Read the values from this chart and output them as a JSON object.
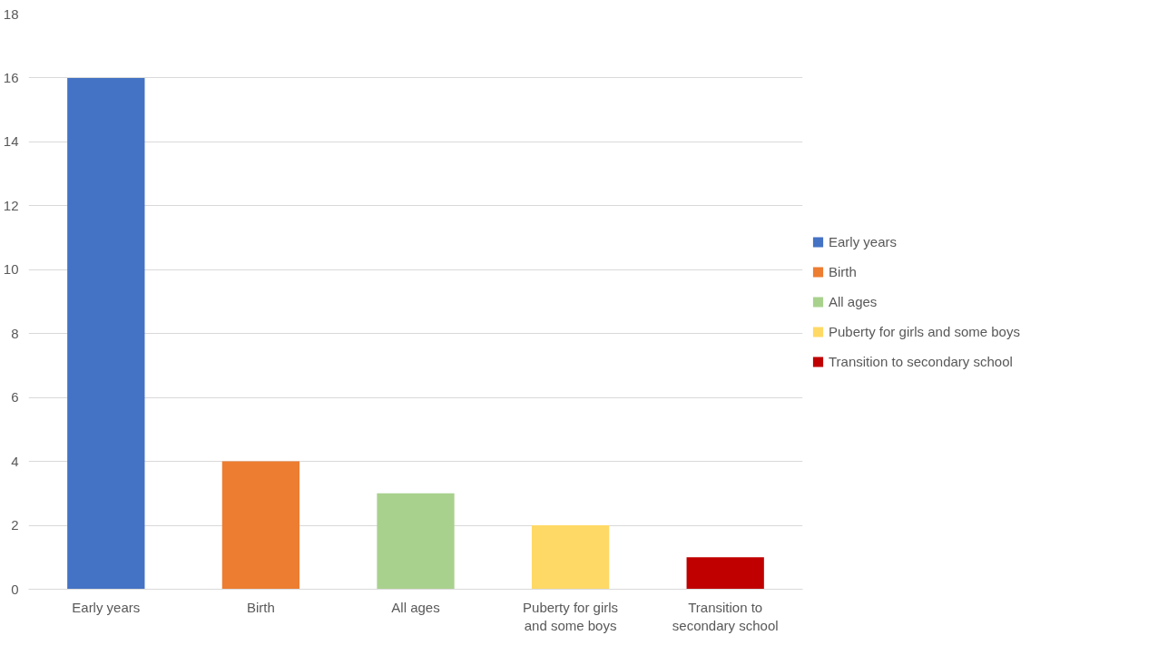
{
  "chart_data": {
    "type": "bar",
    "categories": [
      "Early years",
      "Birth",
      "All ages",
      "Puberty for girls and some boys",
      "Transition to secondary school"
    ],
    "stacked": true,
    "series": [
      {
        "name": "Early years",
        "color": "#4472c4",
        "values": [
          16,
          null,
          null,
          null,
          null
        ]
      },
      {
        "name": "Birth",
        "color": "#ed7d31",
        "values": [
          null,
          4,
          null,
          null,
          null
        ]
      },
      {
        "name": "All ages",
        "color": "#a9d18e",
        "values": [
          null,
          null,
          3,
          null,
          null
        ]
      },
      {
        "name": "Puberty for girls and some boys",
        "color": "#ffd966",
        "values": [
          null,
          null,
          null,
          2,
          null
        ]
      },
      {
        "name": "Transition to secondary school",
        "color": "#c00000",
        "values": [
          null,
          null,
          null,
          null,
          1
        ]
      }
    ],
    "ylim": [
      0,
      18
    ],
    "yticks": [
      0,
      2,
      4,
      6,
      8,
      10,
      12,
      14,
      16,
      18
    ],
    "grid": "y",
    "legend": "right"
  }
}
